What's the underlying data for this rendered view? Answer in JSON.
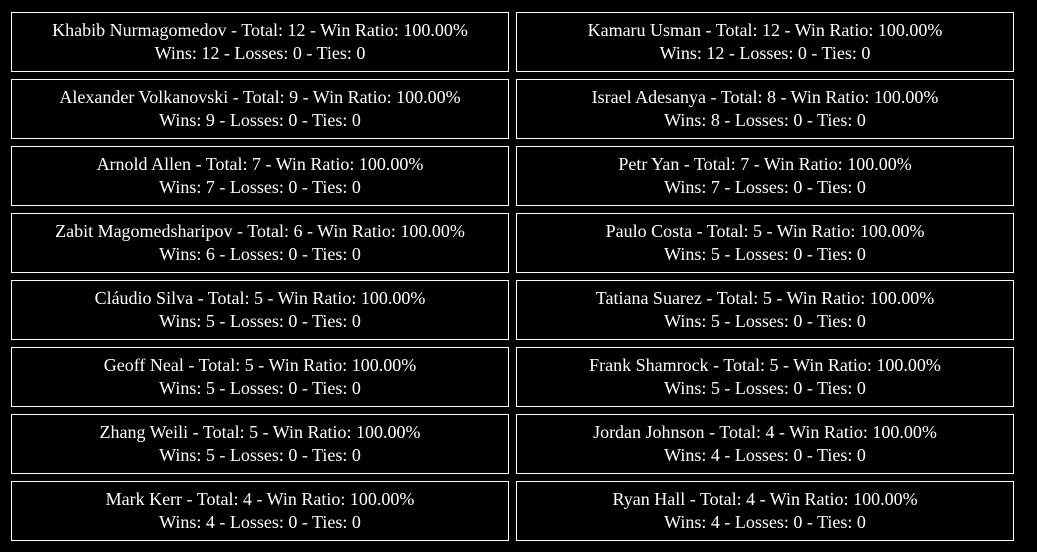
{
  "fighters": [
    {
      "name": "Khabib Nurmagomedov",
      "total": "12",
      "win_ratio": "100.00%",
      "wins": "12",
      "losses": "0",
      "ties": "0"
    },
    {
      "name": "Kamaru Usman",
      "total": "12",
      "win_ratio": "100.00%",
      "wins": "12",
      "losses": "0",
      "ties": "0"
    },
    {
      "name": "Alexander Volkanovski",
      "total": "9",
      "win_ratio": "100.00%",
      "wins": "9",
      "losses": "0",
      "ties": "0"
    },
    {
      "name": "Israel Adesanya",
      "total": "8",
      "win_ratio": "100.00%",
      "wins": "8",
      "losses": "0",
      "ties": "0"
    },
    {
      "name": "Arnold Allen",
      "total": "7",
      "win_ratio": "100.00%",
      "wins": "7",
      "losses": "0",
      "ties": "0"
    },
    {
      "name": "Petr Yan",
      "total": "7",
      "win_ratio": "100.00%",
      "wins": "7",
      "losses": "0",
      "ties": "0"
    },
    {
      "name": "Zabit Magomedsharipov",
      "total": "6",
      "win_ratio": "100.00%",
      "wins": "6",
      "losses": "0",
      "ties": "0"
    },
    {
      "name": "Paulo Costa",
      "total": "5",
      "win_ratio": "100.00%",
      "wins": "5",
      "losses": "0",
      "ties": "0"
    },
    {
      "name": "Cláudio Silva",
      "total": "5",
      "win_ratio": "100.00%",
      "wins": "5",
      "losses": "0",
      "ties": "0"
    },
    {
      "name": "Tatiana Suarez",
      "total": "5",
      "win_ratio": "100.00%",
      "wins": "5",
      "losses": "0",
      "ties": "0"
    },
    {
      "name": "Geoff Neal",
      "total": "5",
      "win_ratio": "100.00%",
      "wins": "5",
      "losses": "0",
      "ties": "0"
    },
    {
      "name": "Frank Shamrock",
      "total": "5",
      "win_ratio": "100.00%",
      "wins": "5",
      "losses": "0",
      "ties": "0"
    },
    {
      "name": "Zhang Weili",
      "total": "5",
      "win_ratio": "100.00%",
      "wins": "5",
      "losses": "0",
      "ties": "0"
    },
    {
      "name": "Jordan Johnson",
      "total": "4",
      "win_ratio": "100.00%",
      "wins": "4",
      "losses": "0",
      "ties": "0"
    },
    {
      "name": "Mark Kerr",
      "total": "4",
      "win_ratio": "100.00%",
      "wins": "4",
      "losses": "0",
      "ties": "0"
    },
    {
      "name": "Ryan Hall",
      "total": "4",
      "win_ratio": "100.00%",
      "wins": "4",
      "losses": "0",
      "ties": "0"
    }
  ],
  "labels": {
    "total": "Total: ",
    "win_ratio": "Win Ratio: ",
    "wins": "Wins: ",
    "losses": "Losses: ",
    "ties": "Ties: ",
    "separator": " - "
  }
}
